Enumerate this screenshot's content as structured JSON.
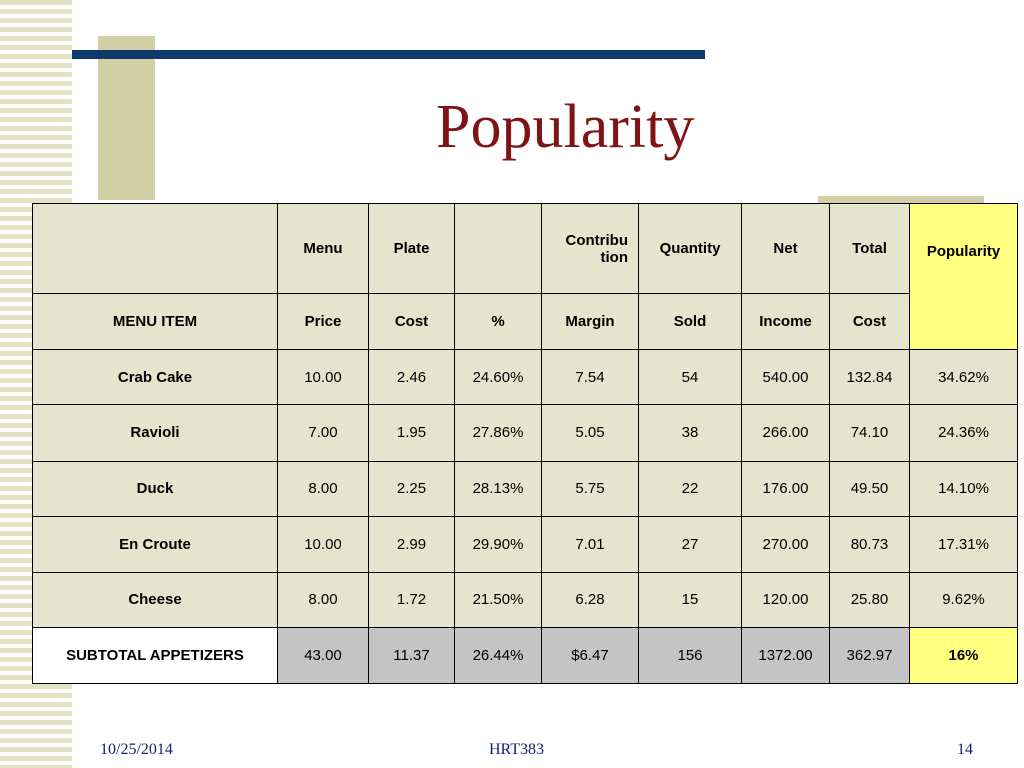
{
  "title": "Popularity",
  "colors": {
    "accent_red": "#7f1416",
    "navy": "#0e3a6b",
    "header_text": "#12227a",
    "highlight_yellow": "#ffff80",
    "beige": "#e5e4cc",
    "grey": "#c4c4c4"
  },
  "header_top": [
    "",
    "Menu",
    "Plate",
    "",
    "Contribu tion",
    "Quantity",
    "Net",
    "Total",
    "Popularity"
  ],
  "header_bottom": [
    "MENU ITEM",
    "Price",
    "Cost",
    "%",
    "Margin",
    "Sold",
    "Income",
    "Cost",
    ""
  ],
  "rows": [
    {
      "name": "Crab Cake",
      "price": "10.00",
      "cost": "2.46",
      "pct": "24.60%",
      "margin": "7.54",
      "sold": "54",
      "income": "540.00",
      "total_cost": "132.84",
      "popularity": "34.62%"
    },
    {
      "name": "Ravioli",
      "price": "7.00",
      "cost": "1.95",
      "pct": "27.86%",
      "margin": "5.05",
      "sold": "38",
      "income": "266.00",
      "total_cost": "74.10",
      "popularity": "24.36%"
    },
    {
      "name": "Duck",
      "price": "8.00",
      "cost": "2.25",
      "pct": "28.13%",
      "margin": "5.75",
      "sold": "22",
      "income": "176.00",
      "total_cost": "49.50",
      "popularity": "14.10%"
    },
    {
      "name": "En Croute",
      "price": "10.00",
      "cost": "2.99",
      "pct": "29.90%",
      "margin": "7.01",
      "sold": "27",
      "income": "270.00",
      "total_cost": "80.73",
      "popularity": "17.31%"
    },
    {
      "name": "Cheese",
      "price": "8.00",
      "cost": "1.72",
      "pct": "21.50%",
      "margin": "6.28",
      "sold": "15",
      "income": "120.00",
      "total_cost": "25.80",
      "popularity": "9.62%"
    }
  ],
  "subtotal": {
    "name": "SUBTOTAL APPETIZERS",
    "price": "43.00",
    "cost": "11.37",
    "pct": "26.44%",
    "margin": "$6.47",
    "sold": "156",
    "income": "1372.00",
    "total_cost": "362.97",
    "popularity": "16%"
  },
  "footer": {
    "date": "10/25/2014",
    "course": "HRT383",
    "page": "14"
  }
}
